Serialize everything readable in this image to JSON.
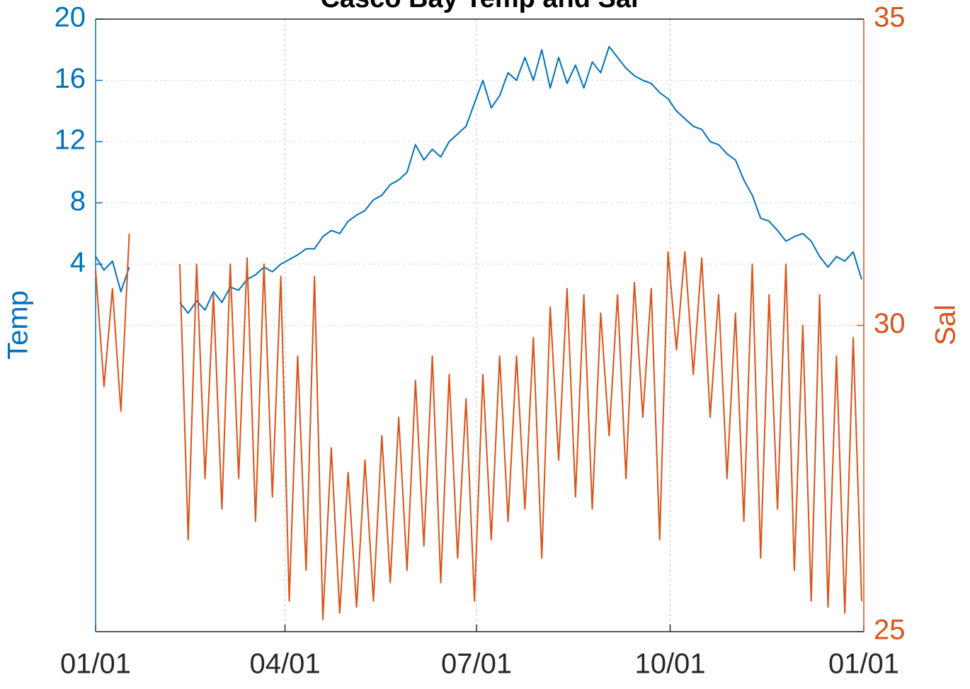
{
  "chart_data": {
    "type": "line",
    "title": "Casco Bay Temp and Sal",
    "ylabel": "Temp",
    "y2label": "Sal",
    "x": [
      0,
      4,
      8,
      12,
      16,
      20,
      24,
      28,
      32,
      36,
      40,
      44,
      48,
      52,
      56,
      60,
      64,
      68,
      72,
      76,
      80,
      84,
      88,
      92,
      96,
      100,
      104,
      108,
      112,
      116,
      120,
      124,
      128,
      132,
      136,
      140,
      144,
      148,
      152,
      156,
      160,
      164,
      168,
      172,
      176,
      180,
      184,
      188,
      192,
      196,
      200,
      204,
      208,
      212,
      216,
      220,
      224,
      228,
      232,
      236,
      240,
      244,
      248,
      252,
      256,
      260,
      264,
      268,
      272,
      276,
      280,
      284,
      288,
      292,
      296,
      300,
      304,
      308,
      312,
      316,
      320,
      324,
      328,
      332,
      336,
      340,
      344,
      348,
      352,
      356,
      360,
      364
    ],
    "xlim": [
      0,
      365
    ],
    "xticks": [
      {
        "value": 0,
        "label": "01/01"
      },
      {
        "value": 90,
        "label": "04/01"
      },
      {
        "value": 181,
        "label": "07/01"
      },
      {
        "value": 273,
        "label": "10/01"
      },
      {
        "value": 365,
        "label": "01/01"
      }
    ],
    "ylim": [
      -20,
      20
    ],
    "yticks": [
      4,
      8,
      12,
      16,
      20
    ],
    "y2lim": [
      25,
      35
    ],
    "y2ticks": [
      25,
      30,
      35
    ],
    "grid": true,
    "series": [
      {
        "name": "Temp",
        "color": "#0072bd",
        "values": [
          4.5,
          3.6,
          4.2,
          2.2,
          3.8,
          null,
          null,
          null,
          null,
          null,
          1.5,
          0.8,
          1.6,
          1,
          2.2,
          1.5,
          2.5,
          2.3,
          3,
          3.3,
          3.8,
          3.5,
          4,
          4.3,
          4.6,
          5,
          5,
          5.8,
          6.2,
          6,
          6.8,
          7.2,
          7.5,
          8.2,
          8.5,
          9.2,
          9.5,
          10,
          11.8,
          10.8,
          11.5,
          11,
          12,
          12.5,
          13,
          14.5,
          16,
          14.2,
          15,
          16.5,
          16,
          17.5,
          16,
          18,
          15.5,
          17.5,
          15.8,
          17,
          15.5,
          17.2,
          16.5,
          18.2,
          17.5,
          16.8,
          16.3,
          16,
          15.8,
          15.2,
          14.8,
          14,
          13.5,
          13,
          12.8,
          12,
          11.8,
          11.2,
          10.8,
          9.5,
          8.5,
          7,
          6.8,
          6.2,
          5.5,
          5.8,
          6,
          5.5,
          4.5,
          3.8,
          4.5,
          4.2,
          4.8,
          3
        ]
      },
      {
        "name": "Sal",
        "color": "#d95319",
        "axis": "y2",
        "values": [
          30.9,
          29,
          30.6,
          28.6,
          31.5,
          null,
          null,
          null,
          null,
          null,
          31,
          26.5,
          31,
          27.5,
          30.5,
          27,
          31,
          27.5,
          31.1,
          26.8,
          31,
          27.2,
          30.8,
          25.5,
          29.5,
          26,
          30.8,
          25.2,
          28,
          25.3,
          27.6,
          25.4,
          27.8,
          25.5,
          28.2,
          25.8,
          28.5,
          26,
          29.1,
          26.4,
          29.5,
          25.8,
          29.2,
          26.2,
          28.8,
          25.5,
          29.2,
          26.5,
          29.5,
          26.8,
          29.5,
          27,
          29.8,
          26.2,
          30.3,
          27.8,
          30.6,
          27.2,
          30.5,
          27,
          30.2,
          28.2,
          30.5,
          27.5,
          30.7,
          28.5,
          30.6,
          26.5,
          31.2,
          29.6,
          31.2,
          29.2,
          31.1,
          28.5,
          30.5,
          27.5,
          30.2,
          26.8,
          31,
          26.2,
          30.5,
          27,
          31,
          26,
          30,
          25.5,
          30.5,
          25.4,
          29.5,
          25.3,
          29.8,
          25.5
        ]
      }
    ]
  }
}
